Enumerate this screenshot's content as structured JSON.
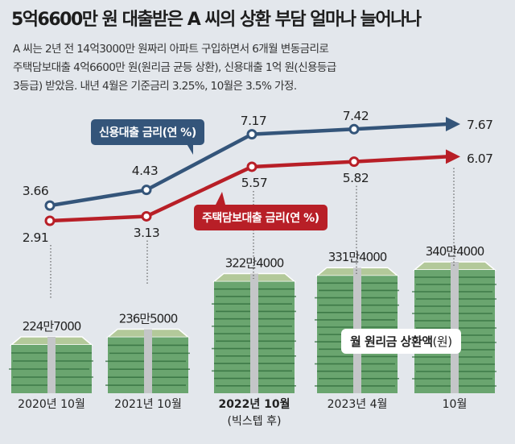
{
  "header": {
    "title": "5억6600만 원 대출받은 A 씨의 상환 부담 얼마나 늘어나나",
    "subtitle_lines": [
      "A 씨는 2년 전 14억3000만 원짜리 아파트 구입하면서 6개월 변동금리로",
      "주택담보대출 4억6600만 원(원리금 균등 상환), 신용대출 1억 원(신용등급",
      "3등급) 받았음. 내년 4월은 기준금리 3.25%, 10월은 3.5% 가정."
    ]
  },
  "colors": {
    "background": "#e3e7ec",
    "credit_loan": "#34557a",
    "mortgage": "#b81f27",
    "money_green": "#6aa56f",
    "money_dark": "#2f6b3a",
    "band": "#c4c6c8"
  },
  "chart_data": {
    "type": "line",
    "title": "5억6600만 원 대출받은 A 씨의 상환 부담 얼마나 늘어나나",
    "categories": [
      "2020년 10월",
      "2021년 10월",
      "2022년 10월",
      "2023년 4월",
      "10월"
    ],
    "category_notes": [
      "",
      "",
      "(빅스텝 후)",
      "",
      ""
    ],
    "series": [
      {
        "name": "신용대출 금리(연 %)",
        "values": [
          3.66,
          4.43,
          7.17,
          7.42,
          7.67
        ],
        "labels": [
          "3.66",
          "4.43",
          "7.17",
          "7.42",
          "7.67"
        ]
      },
      {
        "name": "주택담보대출 금리(연 %)",
        "values": [
          2.91,
          3.13,
          5.57,
          5.82,
          6.07
        ],
        "labels": [
          "2.91",
          "3.13",
          "5.57",
          "5.82",
          "6.07"
        ]
      }
    ],
    "monthly_repayment": {
      "name": "월 원리금 상환액(원)",
      "name_main": "월 원리금 상환액",
      "name_unit": "(원)",
      "values": [
        2247000,
        2365000,
        3224000,
        3314000,
        3404000
      ],
      "labels": [
        "224만7000",
        "236만5000",
        "322만4000",
        "331만4000",
        "340만4000"
      ]
    },
    "ylim": [
      2.5,
      8
    ],
    "legend": [
      "신용대출 금리(연 %)",
      "주택담보대출 금리(연 %)"
    ],
    "grid": false
  }
}
